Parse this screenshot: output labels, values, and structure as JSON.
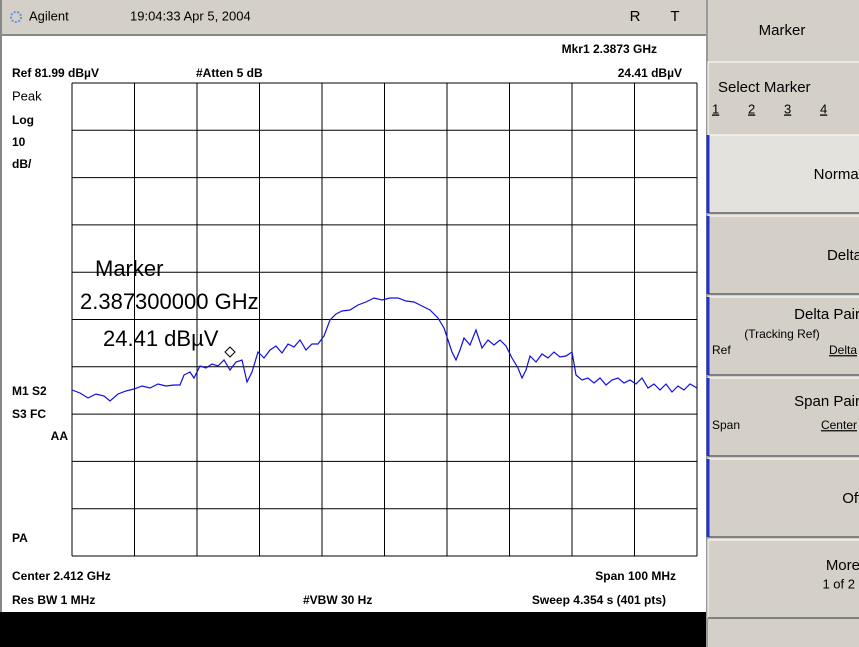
{
  "header": {
    "brand": "Agilent",
    "datetime": "19:04:33  Apr 5, 2004",
    "flags": [
      "R",
      "T"
    ]
  },
  "display": {
    "marker_readout": {
      "frequency": "Mkr1  2.3873 GHz",
      "amplitude": "24.41 dBµV"
    },
    "reference": "Ref 81.99 dBµV",
    "attenuation": "#Atten 5 dB",
    "left_labels": [
      "Peak",
      "Log",
      "10",
      "dB/",
      "M1  S2",
      "S3  FC",
      "AA",
      "PA"
    ],
    "marker_annotation": [
      "Marker",
      "2.387300000 GHz",
      "24.41 dBµV"
    ],
    "footer": {
      "center": "Center 2.412 GHz",
      "span": "Span 100 MHz",
      "rbw": "Res BW 1 MHz",
      "vbw": "#VBW 30 Hz",
      "sweep": "Sweep 4.354 s (401 pts)"
    }
  },
  "menu": {
    "title": "Marker",
    "keys": [
      {
        "label": "Select Marker",
        "options": [
          "1",
          "2",
          "3",
          "4"
        ]
      },
      {
        "label": "Normal"
      },
      {
        "label": "Delta"
      },
      {
        "label": "Delta Pair",
        "sub": "(Tracking Ref)",
        "left": "Ref",
        "right": "Delta"
      },
      {
        "label": "Span Pair",
        "left": "Span",
        "right": "Center"
      },
      {
        "label": "Off"
      },
      {
        "label": "More",
        "sub": "1 of 2"
      }
    ]
  }
}
